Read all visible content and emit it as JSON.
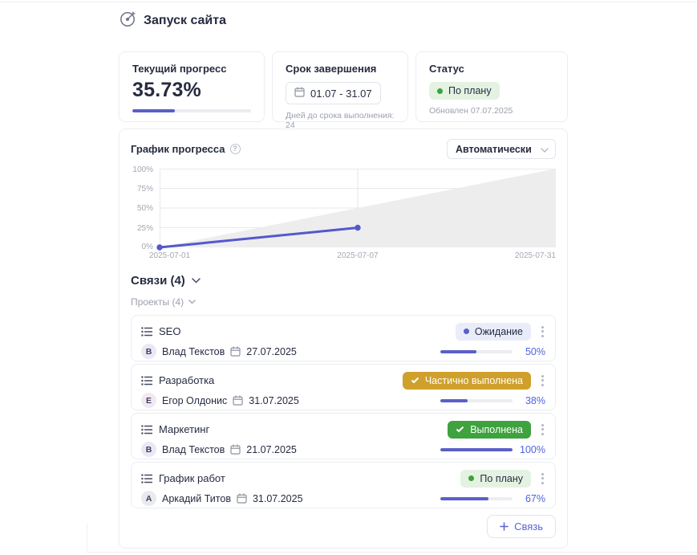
{
  "header": {
    "title": "Запуск сайта"
  },
  "cards": {
    "progress": {
      "label": "Текущий прогресс",
      "value": "35.73%",
      "percent": 35.73
    },
    "deadline": {
      "label": "Срок завершения",
      "range": "01.07 - 31.07",
      "note": "Дней до срока выполнения: 24"
    },
    "status": {
      "label": "Статус",
      "badge": "По плану",
      "badge_type": "on-track",
      "updated": "Обновлен 07.07.2025"
    }
  },
  "chart": {
    "title": "График прогресса",
    "mode": "Автоматически",
    "chart_data": {
      "type": "line",
      "title": "График прогресса",
      "ylim": [
        0,
        100
      ],
      "y_ticks": [
        "100%",
        "75%",
        "50%",
        "25%",
        "0%"
      ],
      "x_labels": [
        "2025-07-01",
        "2025-07-07",
        "2025-07-31"
      ],
      "series": [
        {
          "name": "plan",
          "type": "area",
          "color": "#ededee",
          "points": [
            {
              "x": "2025-07-01",
              "x_frac": 0,
              "y": 0
            },
            {
              "x": "2025-07-31",
              "x_frac": 1,
              "y": 100
            }
          ]
        },
        {
          "name": "actual",
          "type": "line",
          "color": "#5458ce",
          "points": [
            {
              "x": "2025-07-01",
              "x_frac": 0,
              "y": 0
            },
            {
              "x": "2025-07-07",
              "x_frac": 0.5,
              "y": 25
            }
          ]
        }
      ],
      "legend": false,
      "grid": true
    }
  },
  "links": {
    "title": "Связи (4)",
    "group_label": "Проекты (4)",
    "add_label": "Связь",
    "items": [
      {
        "name": "SEO",
        "status": "Ожидание",
        "status_type": "waiting",
        "initial": "В",
        "avatar_color": "#ece7f7",
        "assignee": "Влад Текстов",
        "date": "27.07.2025",
        "percent": 50,
        "percent_label": "50%"
      },
      {
        "name": "Разработка",
        "status": "Частично выполнена",
        "status_type": "partial",
        "initial": "Е",
        "avatar_color": "#f3e7f3",
        "assignee": "Егор Олдонис",
        "date": "31.07.2025",
        "percent": 38,
        "percent_label": "38%"
      },
      {
        "name": "Маркетинг",
        "status": "Выполнена",
        "status_type": "done",
        "initial": "В",
        "avatar_color": "#ece7f7",
        "assignee": "Влад Текстов",
        "date": "21.07.2025",
        "percent": 100,
        "percent_label": "100%"
      },
      {
        "name": "График работ",
        "status": "По плану",
        "status_type": "on-track",
        "initial": "А",
        "avatar_color": "#e8eaef",
        "assignee": "Аркадий Титов",
        "date": "31.07.2025",
        "percent": 67,
        "percent_label": "67%"
      }
    ]
  },
  "colors": {
    "accent": "#5b5fc7",
    "percent_text": "#4d63e2",
    "status_green": "#3ea23e",
    "status_amber": "#cfa02c"
  }
}
